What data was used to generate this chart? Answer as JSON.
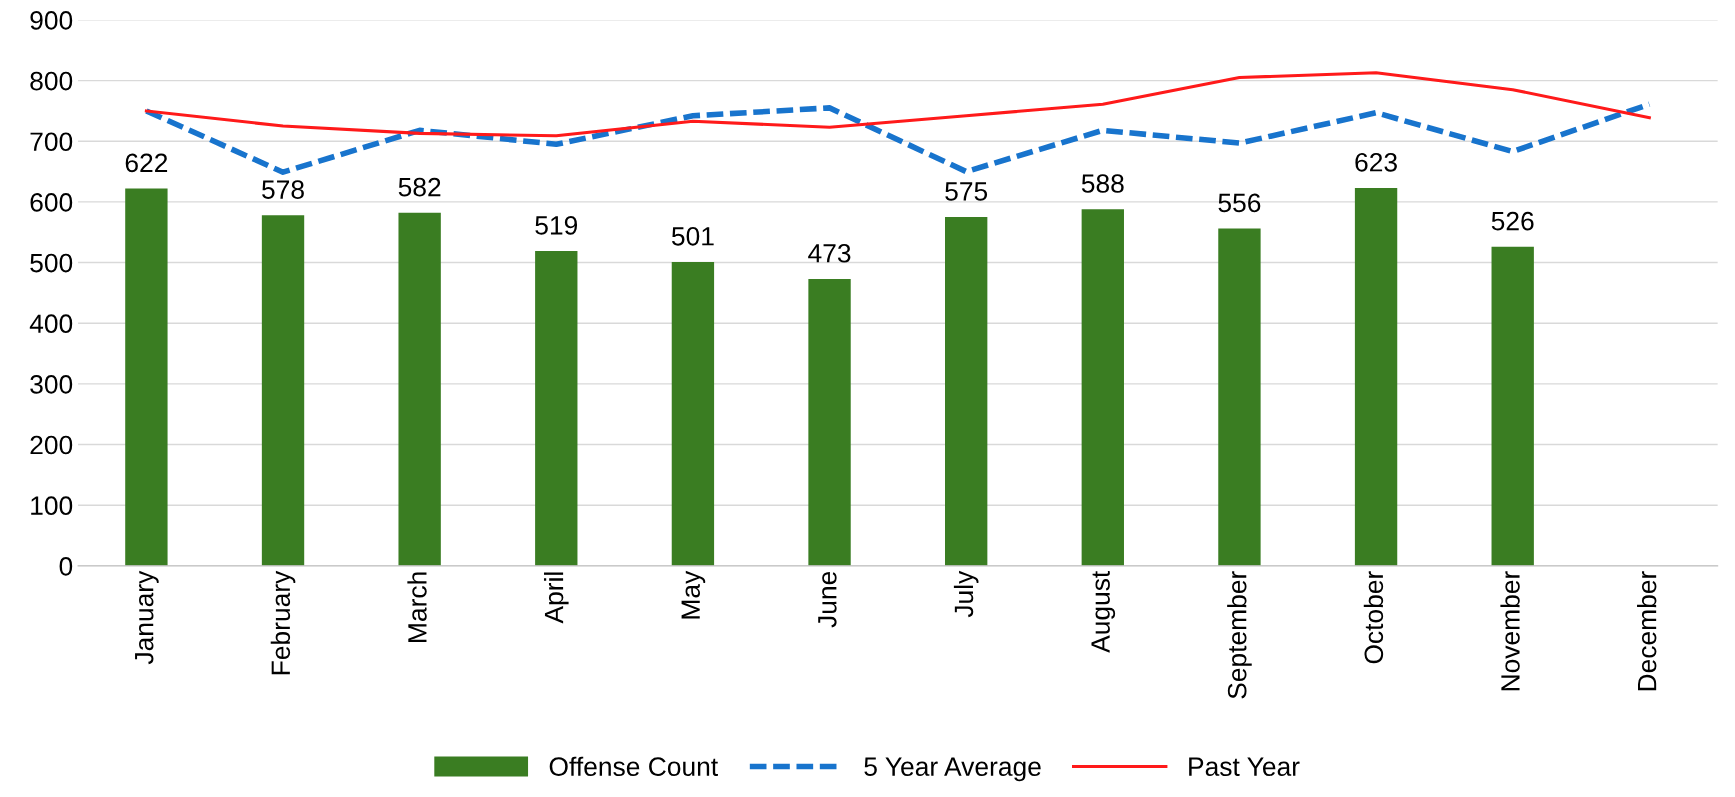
{
  "chart_data": {
    "type": "bar",
    "categories": [
      "January",
      "February",
      "March",
      "April",
      "May",
      "June",
      "July",
      "August",
      "September",
      "October",
      "November",
      "December"
    ],
    "series": [
      {
        "name": "Offense Count",
        "color": "#3a7d22",
        "values": [
          622,
          578,
          582,
          519,
          501,
          473,
          575,
          588,
          556,
          623,
          526,
          null
        ],
        "value_labels": [
          "622",
          "578",
          "582",
          "519",
          "501",
          "473",
          "575",
          "588",
          "556",
          "623",
          "526",
          null
        ]
      },
      {
        "name": "5 Year Average",
        "type": "line",
        "color": "#1874cd",
        "line_style": "dashed",
        "values": [
          750,
          649,
          718,
          695,
          742,
          755,
          650,
          718,
          697,
          747,
          683,
          761
        ]
      },
      {
        "name": "Past Year",
        "type": "line",
        "color": "#ff1a1a",
        "line_style": "solid",
        "values": [
          750,
          725,
          713,
          709,
          733,
          723,
          742,
          761,
          805,
          813,
          785,
          739
        ]
      }
    ],
    "ylim": [
      0,
      900
    ],
    "yticks": [
      0,
      100,
      200,
      300,
      400,
      500,
      600,
      700,
      800,
      900
    ],
    "grid": "y",
    "legend": "bottom"
  }
}
